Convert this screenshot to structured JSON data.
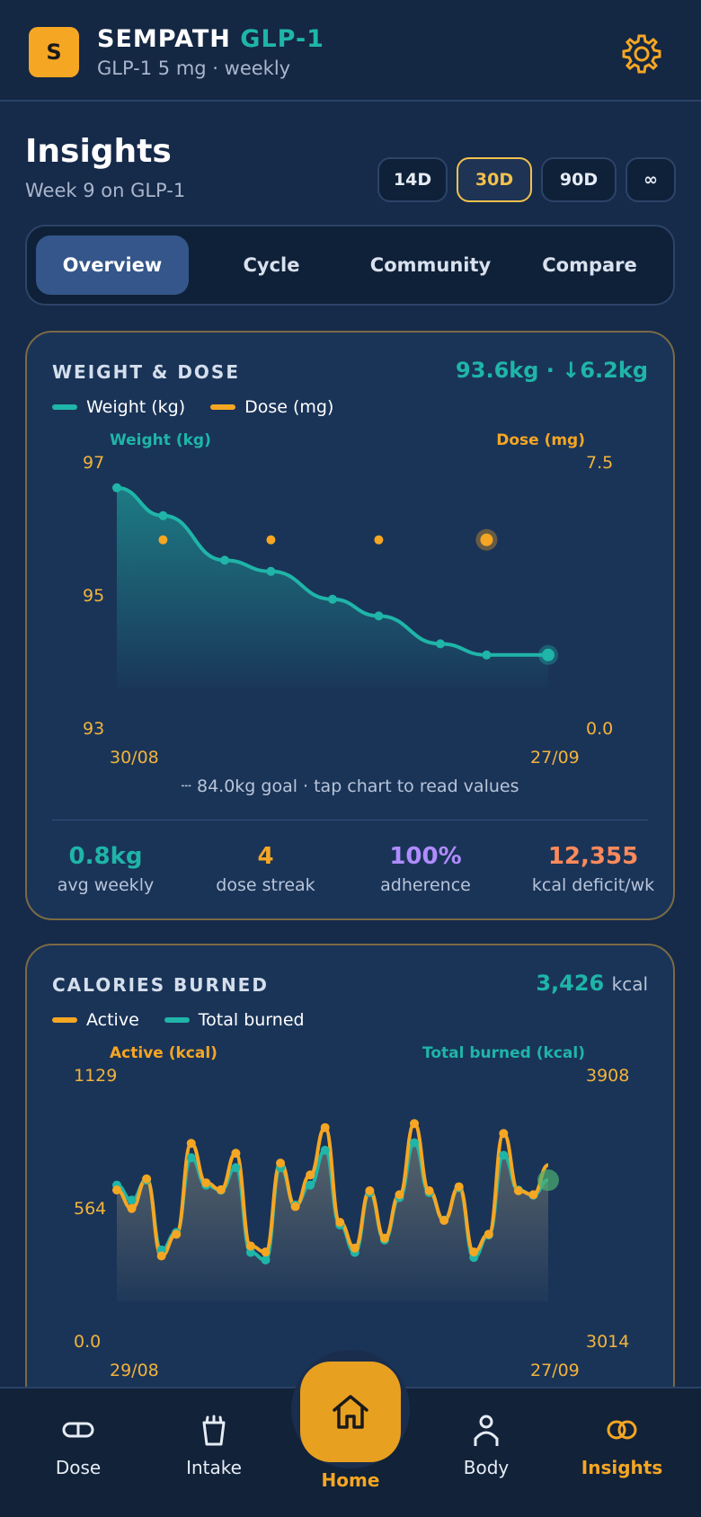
{
  "header": {
    "logo_letter": "S",
    "title_main": "SEMPATH",
    "title_accent": "GLP-1",
    "subtitle": "GLP-1 5 mg · weekly",
    "settings_icon": "gear-icon"
  },
  "insights": {
    "title": "Insights",
    "subtitle": "Week 9 on GLP-1",
    "ranges": [
      "14D",
      "30D",
      "90D",
      "∞"
    ],
    "active_range": "30D"
  },
  "tabs": {
    "items": [
      "Overview",
      "Cycle",
      "Community",
      "Compare"
    ],
    "active": "Overview"
  },
  "weight_card": {
    "title": "WEIGHT & DOSE",
    "headline": "93.6kg · ↓6.2kg",
    "legend": [
      "Weight (kg)",
      "Dose (mg)"
    ],
    "left_axis_label": "Weight (kg)",
    "right_axis_label": "Dose (mg)",
    "left_ticks": [
      "97",
      "95",
      "93"
    ],
    "right_ticks": [
      "7.5",
      "0.0"
    ],
    "x_ticks": [
      "30/08",
      "27/09"
    ],
    "note": "┄ 84.0kg goal · tap chart to read values",
    "stats": [
      {
        "value": "0.8kg",
        "label": "avg weekly",
        "color": "#1fb5a8"
      },
      {
        "value": "4",
        "label": "dose streak",
        "color": "#f5a623"
      },
      {
        "value": "100%",
        "label": "adherence",
        "color": "#b08cff"
      },
      {
        "value": "12,355",
        "label": "kcal deficit/wk",
        "color": "#ff8a5c"
      }
    ]
  },
  "calories_card": {
    "title": "CALORIES BURNED",
    "headline_value": "3,426",
    "headline_unit": "kcal",
    "legend": [
      "Active",
      "Total burned"
    ],
    "left_axis_label": "Active (kcal)",
    "right_axis_label": "Total burned (kcal)",
    "left_ticks": [
      "1129",
      "564",
      "0.0"
    ],
    "right_ticks": [
      "3908",
      "3014"
    ],
    "x_ticks": [
      "29/08",
      "27/09"
    ]
  },
  "bottom_nav": {
    "items": [
      {
        "label": "Dose",
        "icon": "pill-icon"
      },
      {
        "label": "Intake",
        "icon": "cup-icon"
      },
      {
        "label": "Home",
        "icon": "home-icon"
      },
      {
        "label": "Body",
        "icon": "person-icon"
      },
      {
        "label": "Insights",
        "icon": "insights-icon"
      }
    ],
    "active": "Insights"
  },
  "colors": {
    "teal": "#1fb5a8",
    "orange": "#f5a623",
    "purple": "#b08cff",
    "coral": "#ff8a5c",
    "background": "#162a4a"
  },
  "chart_data": [
    {
      "type": "line",
      "title": "WEIGHT & DOSE",
      "x_range": [
        "30/08",
        "27/09"
      ],
      "series": [
        {
          "name": "Weight (kg)",
          "axis": "left",
          "x": [
            "30/08",
            "02/09",
            "06/09",
            "09/09",
            "13/09",
            "16/09",
            "20/09",
            "23/09",
            "27/09"
          ],
          "values": [
            96.6,
            96.1,
            95.3,
            95.1,
            94.6,
            94.3,
            93.8,
            93.6,
            93.6
          ]
        },
        {
          "name": "Dose (mg)",
          "axis": "right",
          "x": [
            "02/09",
            "09/09",
            "16/09",
            "23/09"
          ],
          "values": [
            5,
            5,
            5,
            5
          ]
        }
      ],
      "ylim_left": [
        93,
        97
      ],
      "ylim_right": [
        0,
        7.5
      ],
      "legend": "top-left"
    },
    {
      "type": "line",
      "title": "CALORIES BURNED",
      "x_range": [
        "29/08",
        "27/09"
      ],
      "series": [
        {
          "name": "Active",
          "axis": "left",
          "values": [
            564,
            470,
            620,
            230,
            340,
            800,
            600,
            565,
            750,
            280,
            250,
            700,
            480,
            640,
            880,
            400,
            270,
            560,
            320,
            540,
            900,
            560,
            410,
            580,
            250,
            340,
            850,
            560,
            540,
            690
          ]
        },
        {
          "name": "Total burned",
          "axis": "right",
          "values": [
            3480,
            3420,
            3500,
            3220,
            3290,
            3590,
            3480,
            3460,
            3550,
            3210,
            3180,
            3550,
            3400,
            3480,
            3620,
            3320,
            3210,
            3450,
            3260,
            3430,
            3650,
            3450,
            3340,
            3470,
            3190,
            3280,
            3600,
            3460,
            3440,
            3500
          ]
        }
      ],
      "ylim_left": [
        0,
        1129
      ],
      "ylim_right": [
        3014,
        3908
      ],
      "legend": "top-left"
    }
  ]
}
